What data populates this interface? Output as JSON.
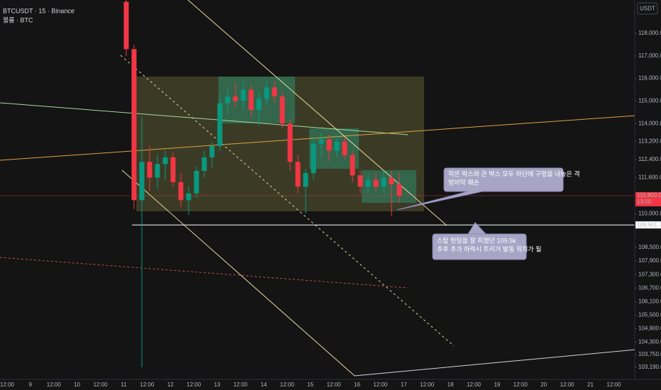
{
  "chart_data": {
    "type": "candlestick",
    "title": "BTCUSDT · 15 · Binance",
    "subtitle": "볼륨 · BTC",
    "currency": "USDT",
    "categories": [
      null,
      null,
      null,
      null,
      null,
      null,
      null,
      null,
      null,
      null,
      null,
      null,
      null,
      null,
      null,
      null,
      null,
      null,
      null,
      null,
      null,
      null,
      null,
      null,
      null,
      null,
      null,
      null,
      null,
      null,
      null,
      null,
      null,
      null,
      null,
      null
    ],
    "open": [
      119400,
      117300,
      110600,
      112300,
      111600,
      112200,
      112500,
      111400,
      110600,
      110900,
      111900,
      112500,
      113000,
      114900,
      115200,
      115000,
      115500,
      114600,
      115100,
      115600,
      115200,
      114000,
      112300,
      111200,
      111800,
      113100,
      113300,
      112800,
      113200,
      112600,
      111700,
      111200,
      111500,
      111200,
      111600,
      111300
    ],
    "high": [
      119480,
      117500,
      114300,
      113000,
      112600,
      112800,
      112700,
      111800,
      111200,
      112100,
      112800,
      113200,
      115300,
      115600,
      115800,
      115900,
      115700,
      115400,
      115900,
      115900,
      115400,
      114200,
      112600,
      112000,
      113400,
      113600,
      113500,
      113500,
      113400,
      112800,
      111900,
      111700,
      111800,
      111900,
      111900,
      111800
    ],
    "low": [
      117000,
      110200,
      103190,
      111000,
      111100,
      111500,
      111200,
      110300,
      109950,
      110700,
      111600,
      112000,
      112800,
      114400,
      114700,
      114600,
      114300,
      113900,
      114800,
      114900,
      113800,
      111900,
      110900,
      110000,
      111500,
      112500,
      112300,
      112500,
      112400,
      111400,
      110900,
      110900,
      111000,
      110900,
      109900,
      110500
    ],
    "close": [
      117300,
      110600,
      112300,
      111600,
      112200,
      112500,
      111400,
      110600,
      110900,
      111900,
      112500,
      113000,
      114900,
      115200,
      115000,
      115500,
      114600,
      115100,
      115600,
      115200,
      114000,
      112300,
      111200,
      111800,
      113100,
      113300,
      112800,
      113200,
      112600,
      111700,
      111200,
      111500,
      111200,
      111600,
      111300,
      110800
    ],
    "up_color": "#089981",
    "down_color": "#f23645",
    "ylim": [
      102650,
      119480
    ],
    "yticks": [
      {
        "value": 118000,
        "label": "118,000.00"
      },
      {
        "value": 117000,
        "label": "117,000.00"
      },
      {
        "value": 116000,
        "label": "116,000.00"
      },
      {
        "value": 115000,
        "label": "115,000.00"
      },
      {
        "value": 114000,
        "label": "114,000.00"
      },
      {
        "value": 113200,
        "label": "113,200.00"
      },
      {
        "value": 112400,
        "label": "112,400.00"
      },
      {
        "value": 111600,
        "label": "111,600.00"
      },
      {
        "value": 110000,
        "label": "110,000.00"
      },
      {
        "value": 108500,
        "label": "108,500.00"
      },
      {
        "value": 107900,
        "label": "107,900.00"
      },
      {
        "value": 107300,
        "label": "107,300.00"
      },
      {
        "value": 106700,
        "label": "106,700.00"
      },
      {
        "value": 106100,
        "label": "106,100.00"
      },
      {
        "value": 105500,
        "label": "105,500.00"
      },
      {
        "value": 104900,
        "label": "104,900.00"
      },
      {
        "value": 104300,
        "label": "104,300.00"
      },
      {
        "value": 103750,
        "label": "103,750.00"
      },
      {
        "value": 103190,
        "label": "103,190.00"
      }
    ],
    "xtick_labels": [
      "12:00",
      "9",
      "12:00",
      "10",
      "12:00",
      "11",
      "12:00",
      "12",
      "12:00",
      "13",
      "12:00",
      "14",
      "12:00",
      "15",
      "12:00",
      "16",
      "12:00",
      "17",
      "12:00",
      "18",
      "12:00",
      "19",
      "12:00",
      "20",
      "12:00",
      "21",
      "12:00"
    ],
    "price_lines": [
      {
        "value": 109501.76,
        "label": "109,501.76",
        "color": "#ffffff"
      },
      {
        "value": 110800,
        "label": "110,800.00",
        "sublabel": "13:00",
        "color": "#f23645"
      }
    ],
    "annotations": [
      {
        "lines": [
          "작은 박스와 큰 박스 모두 하단에 구멍을 내놓은 격",
          "방어막 훼손"
        ]
      },
      {
        "lines": [
          "스탑 헌팅을 잘 피했던 109.5k",
          "추후 추가 하락시 트리거 발동 위치가 될"
        ]
      }
    ]
  }
}
